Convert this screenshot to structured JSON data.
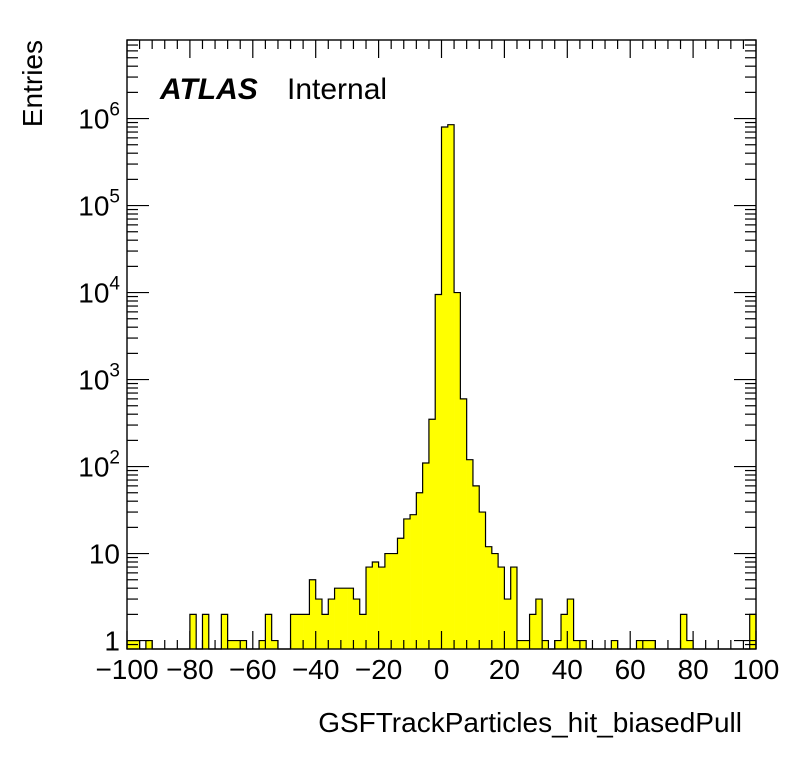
{
  "chart_data": {
    "type": "bar",
    "style": "histogram",
    "x_label": "GSFTrackParticles_hit_biasedPull",
    "y_label": "Entries",
    "label_bold": "ATLAS",
    "label_normal": "Internal",
    "x_range": [
      -100,
      100
    ],
    "y_range": [
      0.8,
      8000000
    ],
    "y_scale": "log",
    "bin_width": 2,
    "x_ticks": [
      {
        "v": -100,
        "label": "−100"
      },
      {
        "v": -80,
        "label": "−80"
      },
      {
        "v": -60,
        "label": "−60"
      },
      {
        "v": -40,
        "label": "−40"
      },
      {
        "v": -20,
        "label": "−20"
      },
      {
        "v": 0,
        "label": "0"
      },
      {
        "v": 20,
        "label": "20"
      },
      {
        "v": 40,
        "label": "40"
      },
      {
        "v": 60,
        "label": "60"
      },
      {
        "v": 80,
        "label": "80"
      },
      {
        "v": 100,
        "label": "100"
      }
    ],
    "y_ticks": [
      {
        "v": 1,
        "base": "1",
        "exp": ""
      },
      {
        "v": 10,
        "base": "10",
        "exp": ""
      },
      {
        "v": 100,
        "base": "10",
        "exp": "2"
      },
      {
        "v": 1000,
        "base": "10",
        "exp": "3"
      },
      {
        "v": 10000,
        "base": "10",
        "exp": "4"
      },
      {
        "v": 100000,
        "base": "10",
        "exp": "5"
      },
      {
        "v": 1000000,
        "base": "10",
        "exp": "6"
      }
    ],
    "fill_color": "#ffff00",
    "line_color": "#000000",
    "bins": [
      {
        "x": -100,
        "y": 1
      },
      {
        "x": -98,
        "y": 1
      },
      {
        "x": -96,
        "y": 0
      },
      {
        "x": -94,
        "y": 1
      },
      {
        "x": -92,
        "y": 0
      },
      {
        "x": -90,
        "y": 0
      },
      {
        "x": -88,
        "y": 0
      },
      {
        "x": -86,
        "y": 0
      },
      {
        "x": -84,
        "y": 0
      },
      {
        "x": -82,
        "y": 0
      },
      {
        "x": -80,
        "y": 2
      },
      {
        "x": -78,
        "y": 0
      },
      {
        "x": -76,
        "y": 2
      },
      {
        "x": -74,
        "y": 0
      },
      {
        "x": -72,
        "y": 0
      },
      {
        "x": -70,
        "y": 2
      },
      {
        "x": -68,
        "y": 1
      },
      {
        "x": -66,
        "y": 1
      },
      {
        "x": -64,
        "y": 1
      },
      {
        "x": -62,
        "y": 0
      },
      {
        "x": -60,
        "y": 0
      },
      {
        "x": -58,
        "y": 1
      },
      {
        "x": -56,
        "y": 2
      },
      {
        "x": -54,
        "y": 1
      },
      {
        "x": -52,
        "y": 0
      },
      {
        "x": -50,
        "y": 0
      },
      {
        "x": -48,
        "y": 2
      },
      {
        "x": -46,
        "y": 2
      },
      {
        "x": -44,
        "y": 2
      },
      {
        "x": -42,
        "y": 5
      },
      {
        "x": -40,
        "y": 3
      },
      {
        "x": -38,
        "y": 2
      },
      {
        "x": -36,
        "y": 3
      },
      {
        "x": -34,
        "y": 4
      },
      {
        "x": -32,
        "y": 4
      },
      {
        "x": -30,
        "y": 4
      },
      {
        "x": -28,
        "y": 3
      },
      {
        "x": -26,
        "y": 2
      },
      {
        "x": -24,
        "y": 7
      },
      {
        "x": -22,
        "y": 8
      },
      {
        "x": -20,
        "y": 7
      },
      {
        "x": -18,
        "y": 10
      },
      {
        "x": -16,
        "y": 10
      },
      {
        "x": -14,
        "y": 15
      },
      {
        "x": -12,
        "y": 25
      },
      {
        "x": -10,
        "y": 28
      },
      {
        "x": -8,
        "y": 50
      },
      {
        "x": -6,
        "y": 110
      },
      {
        "x": -4,
        "y": 350
      },
      {
        "x": -2,
        "y": 9500
      },
      {
        "x": 0,
        "y": 800000
      },
      {
        "x": 2,
        "y": 850000
      },
      {
        "x": 4,
        "y": 10000
      },
      {
        "x": 6,
        "y": 600
      },
      {
        "x": 8,
        "y": 120
      },
      {
        "x": 10,
        "y": 60
      },
      {
        "x": 12,
        "y": 30
      },
      {
        "x": 14,
        "y": 12
      },
      {
        "x": 16,
        "y": 10
      },
      {
        "x": 18,
        "y": 7
      },
      {
        "x": 20,
        "y": 3
      },
      {
        "x": 22,
        "y": 7
      },
      {
        "x": 24,
        "y": 1
      },
      {
        "x": 26,
        "y": 1
      },
      {
        "x": 28,
        "y": 2
      },
      {
        "x": 30,
        "y": 3
      },
      {
        "x": 32,
        "y": 1
      },
      {
        "x": 34,
        "y": 0
      },
      {
        "x": 36,
        "y": 1
      },
      {
        "x": 38,
        "y": 2
      },
      {
        "x": 40,
        "y": 3
      },
      {
        "x": 42,
        "y": 1
      },
      {
        "x": 44,
        "y": 1
      },
      {
        "x": 46,
        "y": 0
      },
      {
        "x": 48,
        "y": 0
      },
      {
        "x": 50,
        "y": 0
      },
      {
        "x": 52,
        "y": 0
      },
      {
        "x": 54,
        "y": 1
      },
      {
        "x": 56,
        "y": 0
      },
      {
        "x": 58,
        "y": 0
      },
      {
        "x": 60,
        "y": 0
      },
      {
        "x": 62,
        "y": 1
      },
      {
        "x": 64,
        "y": 1
      },
      {
        "x": 66,
        "y": 1
      },
      {
        "x": 68,
        "y": 0
      },
      {
        "x": 70,
        "y": 0
      },
      {
        "x": 72,
        "y": 0
      },
      {
        "x": 74,
        "y": 0
      },
      {
        "x": 76,
        "y": 2
      },
      {
        "x": 78,
        "y": 1
      },
      {
        "x": 80,
        "y": 0
      },
      {
        "x": 82,
        "y": 0
      },
      {
        "x": 84,
        "y": 0
      },
      {
        "x": 86,
        "y": 0
      },
      {
        "x": 88,
        "y": 0
      },
      {
        "x": 90,
        "y": 0
      },
      {
        "x": 92,
        "y": 0
      },
      {
        "x": 94,
        "y": 0
      },
      {
        "x": 96,
        "y": 0
      },
      {
        "x": 98,
        "y": 2
      }
    ]
  }
}
